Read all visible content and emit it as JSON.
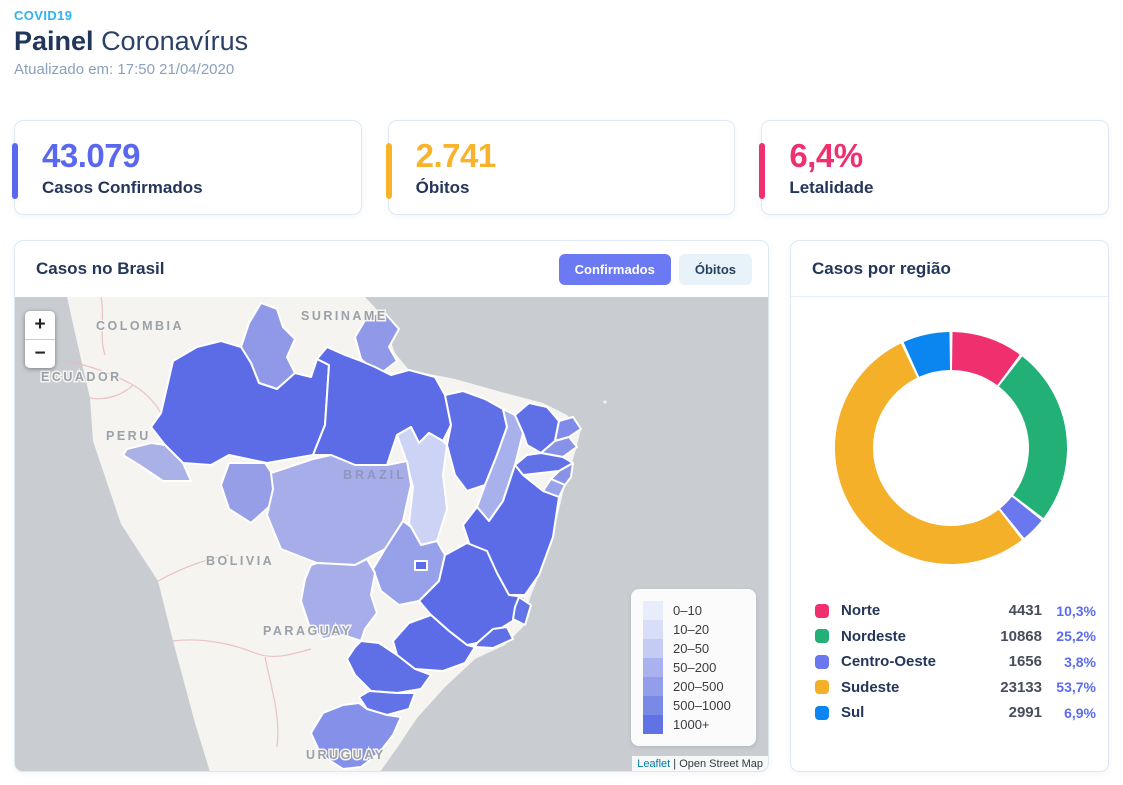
{
  "header": {
    "eyebrow": "COVID19",
    "title_bold": "Painel",
    "title_regular": "Coronavírus",
    "updated_label": "Atualizado em:",
    "updated_value": "17:50 21/04/2020"
  },
  "stats": [
    {
      "value": "43.079",
      "label": "Casos Confirmados",
      "color": "#5a68f0"
    },
    {
      "value": "2.741",
      "label": "Óbitos",
      "color": "#f9b32a"
    },
    {
      "value": "6,4%",
      "label": "Letalidade",
      "color": "#ef2f6e"
    }
  ],
  "map_card": {
    "title": "Casos no Brasil",
    "buttons": [
      {
        "label": "Confirmados",
        "active": true
      },
      {
        "label": "Óbitos",
        "active": false
      }
    ],
    "zoom_in": "+",
    "zoom_out": "−",
    "labels": [
      "COLOMBIA",
      "SURINAME",
      "ECUADOR",
      "PERU",
      "BOLIVIA",
      "PARAGUAY",
      "URUGUAY",
      "BRAZIL"
    ],
    "legend_buckets": [
      "0–10",
      "10–20",
      "20–50",
      "50–200",
      "200–500",
      "500–1000",
      "1000+"
    ],
    "legend_colors": [
      "#e9ecfb",
      "#d9def8",
      "#c5ccf4",
      "#a9b2ee",
      "#929ee9",
      "#7b89e6",
      "#6173e4"
    ],
    "attribution": {
      "link": "Leaflet",
      "separator": "|",
      "text": "Open Street Map"
    },
    "states": {
      "RR": "#8f99e8",
      "AP": "#8f99e8",
      "AM": "#5b6ce6",
      "PA": "#5b6ce6",
      "MA": "#5f6fe6",
      "PI": "#a9b1ec",
      "CE": "#5f6fe6",
      "RN": "#7f8be8",
      "PB": "#8893e8",
      "PE": "#6072e6",
      "AL": "#8893e8",
      "SE": "#99a2ea",
      "BA": "#5b6ce6",
      "TO": "#cdd3f4",
      "AC": "#aab1e6",
      "RO": "#959ee6",
      "MT": "#a6ade8",
      "GO": "#97a1ea",
      "DF": "#5b6ce6",
      "MG": "#5b6ce6",
      "ES": "#6173e6",
      "RJ": "#5f6fe6",
      "SP": "#5b6ce6",
      "MS": "#a6ade9",
      "PR": "#5f6fe6",
      "SC": "#6173e6",
      "RS": "#8590e8"
    }
  },
  "region_card": {
    "title": "Casos por região",
    "regions": [
      {
        "name": "Norte",
        "value": "4431",
        "pct": "10,3%",
        "color": "#f0306e"
      },
      {
        "name": "Nordeste",
        "value": "10868",
        "pct": "25,2%",
        "color": "#22b077"
      },
      {
        "name": "Centro-Oeste",
        "value": "1656",
        "pct": "3,8%",
        "color": "#6b77ef"
      },
      {
        "name": "Sudeste",
        "value": "23133",
        "pct": "53,7%",
        "color": "#f5b02a"
      },
      {
        "name": "Sul",
        "value": "2991",
        "pct": "6,9%",
        "color": "#0b86f0"
      }
    ]
  },
  "chart_data": [
    {
      "type": "pie",
      "subtype": "donut",
      "title": "Casos por região",
      "labels": [
        "Norte",
        "Nordeste",
        "Centro-Oeste",
        "Sudeste",
        "Sul"
      ],
      "values": [
        4431,
        10868,
        1656,
        23133,
        2991
      ],
      "percentages": [
        10.3,
        25.2,
        3.8,
        53.7,
        6.9
      ],
      "colors": [
        "#f0306e",
        "#22b077",
        "#6b77ef",
        "#f5b02a",
        "#0b86f0"
      ],
      "start_angle_deg": -90,
      "direction": "clockwise",
      "legend_position": "bottom"
    },
    {
      "type": "heatmap",
      "subtype": "choropleth",
      "title": "Casos no Brasil",
      "metric": "Confirmados",
      "region": "Brazil states",
      "buckets": [
        "0–10",
        "10–20",
        "20–50",
        "50–200",
        "200–500",
        "500–1000",
        "1000+"
      ],
      "bucket_colors": [
        "#e9ecfb",
        "#d9def8",
        "#c5ccf4",
        "#a9b2ee",
        "#929ee9",
        "#7b89e6",
        "#6173e4"
      ]
    }
  ]
}
